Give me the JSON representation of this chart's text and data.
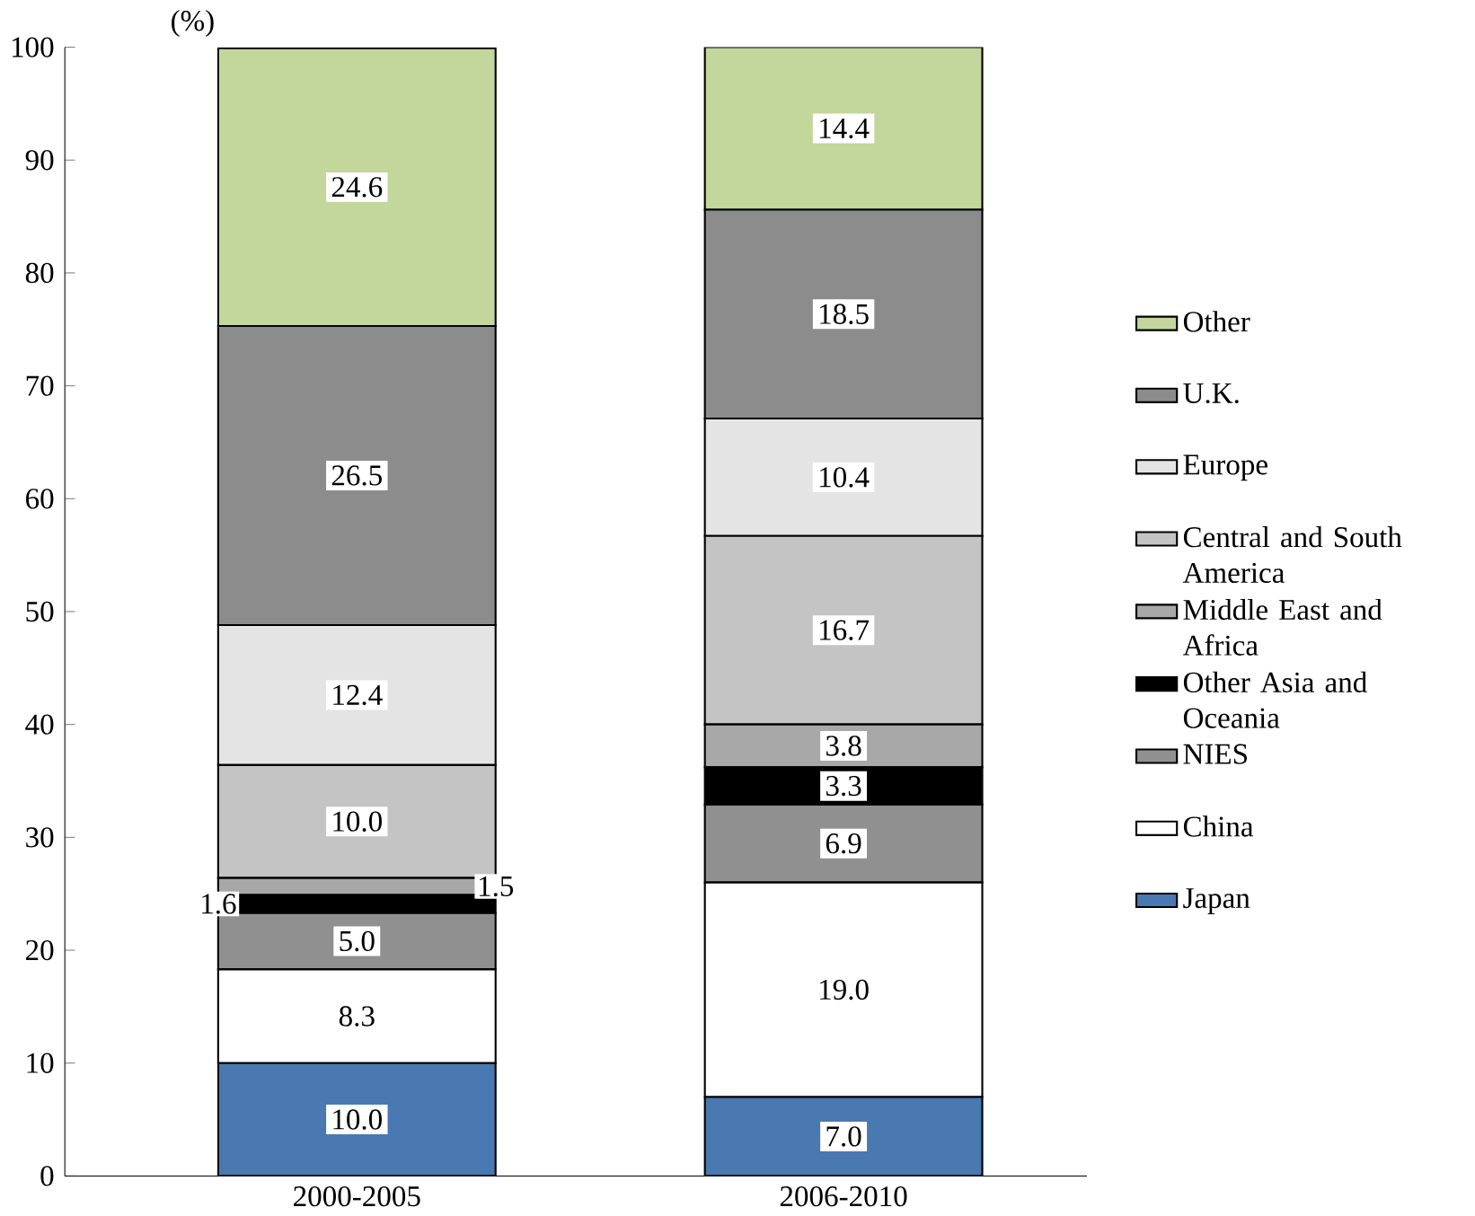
{
  "chart_data": {
    "type": "bar",
    "stacked": true,
    "ylabel": "(%)",
    "categories": [
      "2000-2005",
      "2006-2010"
    ],
    "series": [
      {
        "name": "Japan",
        "color": "#4a78b0",
        "values": [
          10.0,
          7.0
        ],
        "value_labels": [
          "10.0",
          "7.0"
        ]
      },
      {
        "name": "China",
        "color": "#ffffff",
        "values": [
          8.3,
          19.0
        ],
        "value_labels": [
          "8.3",
          "19.0"
        ]
      },
      {
        "name": "NIES",
        "color": "#909090",
        "values": [
          5.0,
          6.9
        ],
        "value_labels": [
          "5.0",
          "6.9"
        ]
      },
      {
        "name": "Other Asia and Oceania",
        "color": "#000000",
        "values": [
          1.6,
          3.3
        ],
        "value_labels": [
          "1.6",
          "3.3"
        ]
      },
      {
        "name": "Middle East and Africa",
        "color": "#a8a8a8",
        "values": [
          1.5,
          3.8
        ],
        "value_labels": [
          "1.5",
          "3.8"
        ]
      },
      {
        "name": "Central and South America",
        "color": "#c4c4c4",
        "values": [
          10.0,
          16.7
        ],
        "value_labels": [
          "10.0",
          "16.7"
        ]
      },
      {
        "name": "Europe",
        "color": "#e4e4e4",
        "values": [
          12.4,
          10.4
        ],
        "value_labels": [
          "12.4",
          "10.4"
        ]
      },
      {
        "name": "U.K.",
        "color": "#8c8c8c",
        "values": [
          26.5,
          18.5
        ],
        "value_labels": [
          "26.5",
          "18.5"
        ]
      },
      {
        "name": "Other",
        "color": "#c3d69b",
        "values": [
          24.6,
          14.4
        ],
        "value_labels": [
          "24.6",
          "14.4"
        ]
      }
    ],
    "ylim": [
      0,
      100
    ],
    "yticks": [
      0,
      10,
      20,
      30,
      40,
      50,
      60,
      70,
      80,
      90,
      100
    ],
    "legend": "right"
  }
}
